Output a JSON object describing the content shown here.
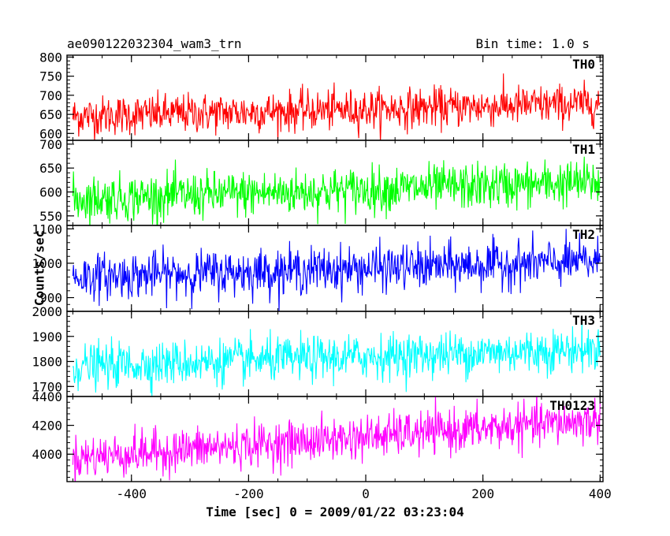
{
  "header": {
    "title": "ae090122032304_wam3_trn",
    "bin_time": "Bin time: 1.0 s"
  },
  "chart_data": {
    "type": "line",
    "xlabel": "Time [sec] 0 = 2009/01/22 03:23:04",
    "ylabel": "Counts/sec",
    "xlim": [
      -510,
      405
    ],
    "xticks": [
      -400,
      -200,
      0,
      200,
      400
    ],
    "x_start": -500,
    "x_end": 400,
    "x_step": 1.0,
    "grid": false,
    "panels": [
      {
        "name": "TH0",
        "color": "#ff0000",
        "ylim": [
          582,
          805
        ],
        "yticks": [
          600,
          650,
          700,
          750,
          800
        ],
        "trend_start": 645,
        "trend_end": 678,
        "noise": 26
      },
      {
        "name": "TH1",
        "color": "#00ff00",
        "ylim": [
          530,
          708
        ],
        "yticks": [
          550,
          600,
          650,
          700
        ],
        "trend_start": 585,
        "trend_end": 620,
        "noise": 24
      },
      {
        "name": "TH2",
        "color": "#0000ff",
        "ylim": [
          860,
          1110
        ],
        "yticks": [
          900,
          1000,
          1100
        ],
        "trend_start": 960,
        "trend_end": 1005,
        "noise": 33
      },
      {
        "name": "TH3",
        "color": "#00ffff",
        "ylim": [
          1660,
          2000
        ],
        "yticks": [
          1700,
          1800,
          1900,
          2000
        ],
        "trend_start": 1780,
        "trend_end": 1850,
        "noise": 44
      },
      {
        "name": "TH0123",
        "color": "#ff00ff",
        "ylim": [
          3810,
          4400
        ],
        "yticks": [
          4000,
          4200,
          4400
        ],
        "trend_start": 3975,
        "trend_end": 4235,
        "noise": 75
      }
    ]
  }
}
